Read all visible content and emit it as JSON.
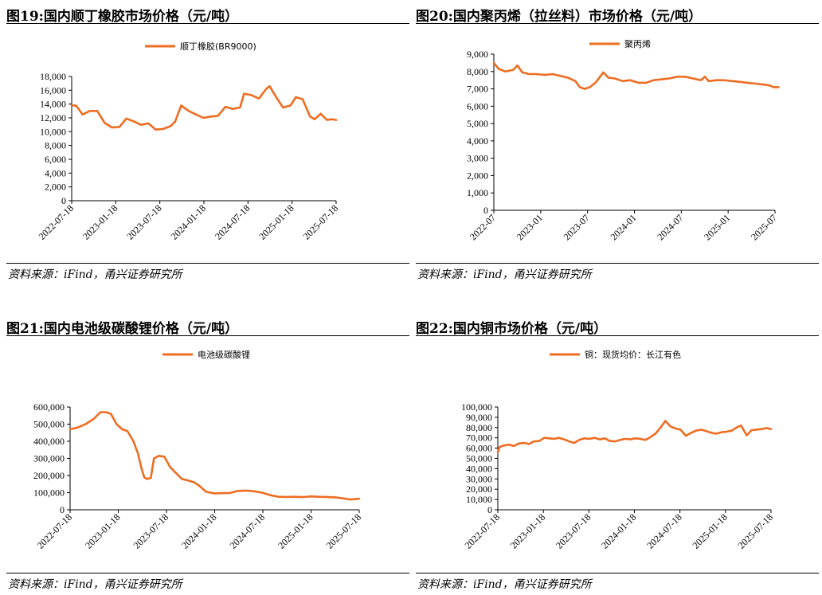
{
  "panels": [
    {
      "title": "图19:国内顺丁橡胶市场价格（元/吨）",
      "source": "资料来源：iFind，甬兴证券研究所"
    },
    {
      "title": "图20:国内聚丙烯（拉丝料）市场价格（元/吨）",
      "source": "资料来源：iFind，甬兴证券研究所"
    },
    {
      "title": "图21:国内电池级碳酸锂价格（元/吨）",
      "source": "资料来源：iFind，甬兴证券研究所"
    },
    {
      "title": "图22:国内铜市场价格（元/吨）",
      "source": "资料来源：iFind，甬兴证券研究所"
    }
  ],
  "colors": {
    "series": "#ED6D22",
    "text": "#000000",
    "rule": "#000000"
  },
  "chart_data": [
    {
      "type": "line",
      "title": "",
      "series": [
        {
          "name": "顺丁橡胶(BR9000)"
        }
      ],
      "legend": "top-center",
      "grid": false,
      "x_tick_labels": [
        "2022-07-18",
        "2023-01-18",
        "2023-07-18",
        "2024-01-18",
        "2024-07-18",
        "2025-01-18",
        "2025-07-18"
      ],
      "x_start": "2022-07-18",
      "x_end": "2025-07-18",
      "ylim": [
        0,
        18000
      ],
      "y_ticks": [
        0,
        2000,
        4000,
        6000,
        8000,
        10000,
        12000,
        14000,
        16000,
        18000
      ],
      "y_tick_labels": [
        "0",
        "2,000",
        "4,000",
        "6,000",
        "8,000",
        "10,000",
        "12,000",
        "14,000",
        "16,000",
        "18,000"
      ],
      "x": [
        "2022-07-18",
        "2022-08-05",
        "2022-09-01",
        "2022-10-01",
        "2022-11-01",
        "2022-12-01",
        "2023-01-01",
        "2023-02-01",
        "2023-03-01",
        "2023-04-01",
        "2023-05-01",
        "2023-06-01",
        "2023-07-01",
        "2023-08-01",
        "2023-09-01",
        "2023-09-20",
        "2023-10-15",
        "2023-11-15",
        "2023-12-15",
        "2024-01-15",
        "2024-02-15",
        "2024-03-15",
        "2024-04-15",
        "2024-05-15",
        "2024-06-15",
        "2024-07-01",
        "2024-08-01",
        "2024-09-01",
        "2024-10-01",
        "2024-10-15",
        "2024-11-15",
        "2024-12-10",
        "2025-01-10",
        "2025-02-01",
        "2025-03-01",
        "2025-04-01",
        "2025-04-20",
        "2025-05-15",
        "2025-06-10",
        "2025-07-01",
        "2025-07-18"
      ],
      "y": [
        13800,
        13800,
        12500,
        13000,
        13000,
        11300,
        10600,
        10700,
        11900,
        11500,
        11000,
        11200,
        10300,
        10400,
        10800,
        11500,
        13800,
        13000,
        12500,
        12000,
        12200,
        12300,
        13600,
        13300,
        13500,
        15500,
        15300,
        14800,
        16200,
        16600,
        14800,
        13500,
        13800,
        15000,
        14700,
        12200,
        11800,
        12600,
        11700,
        11800,
        11700
      ]
    },
    {
      "type": "line",
      "title": "",
      "series": [
        {
          "name": "聚丙烯"
        }
      ],
      "legend": "top-center",
      "grid": false,
      "x_tick_labels": [
        "2022-07",
        "2023-01",
        "2023-07",
        "2024-01",
        "2024-07",
        "2025-01",
        "2025-07"
      ],
      "x_start": "2022-07",
      "x_end": "2025-07",
      "ylim": [
        0,
        9000
      ],
      "y_ticks": [
        0,
        1000,
        2000,
        3000,
        4000,
        5000,
        6000,
        7000,
        8000,
        9000
      ],
      "y_tick_labels": [
        "0",
        "1,000",
        "2,000",
        "3,000",
        "4,000",
        "5,000",
        "6,000",
        "7,000",
        "8,000",
        "9,000"
      ],
      "x": [
        "2022-07-01",
        "2022-07-20",
        "2022-08-15",
        "2022-09-15",
        "2022-10-01",
        "2022-10-20",
        "2022-11-15",
        "2022-12-15",
        "2023-01-15",
        "2023-02-15",
        "2023-03-15",
        "2023-04-15",
        "2023-05-15",
        "2023-06-01",
        "2023-06-20",
        "2023-07-10",
        "2023-08-01",
        "2023-09-01",
        "2023-09-20",
        "2023-10-15",
        "2023-11-15",
        "2023-12-15",
        "2024-01-15",
        "2024-02-15",
        "2024-03-15",
        "2024-04-15",
        "2024-05-15",
        "2024-06-15",
        "2024-07-15",
        "2024-08-15",
        "2024-09-15",
        "2024-10-01",
        "2024-10-15",
        "2024-11-15",
        "2024-12-15",
        "2025-01-15",
        "2025-02-15",
        "2025-03-15",
        "2025-04-15",
        "2025-05-15",
        "2025-06-10",
        "2025-06-25",
        "2025-07-15"
      ],
      "y": [
        8500,
        8150,
        8000,
        8100,
        8350,
        7950,
        7850,
        7850,
        7800,
        7850,
        7750,
        7650,
        7450,
        7100,
        7000,
        7100,
        7350,
        7950,
        7650,
        7600,
        7450,
        7500,
        7350,
        7350,
        7500,
        7550,
        7600,
        7700,
        7700,
        7600,
        7500,
        7700,
        7450,
        7500,
        7500,
        7450,
        7400,
        7350,
        7300,
        7250,
        7200,
        7100,
        7100
      ]
    },
    {
      "type": "line",
      "title": "",
      "series": [
        {
          "name": "电池级碳酸锂"
        }
      ],
      "legend": "top-center",
      "grid": false,
      "x_tick_labels": [
        "2022-07-18",
        "2023-01-18",
        "2023-07-18",
        "2024-01-18",
        "2024-07-18",
        "2025-01-18",
        "2025-07-18"
      ],
      "x_start": "2022-07-18",
      "x_end": "2025-07-18",
      "ylim": [
        0,
        600000
      ],
      "y_ticks": [
        0,
        100000,
        200000,
        300000,
        400000,
        500000,
        600000
      ],
      "y_tick_labels": [
        "0",
        "100,000",
        "200,000",
        "300,000",
        "400,000",
        "500,000",
        "600,000"
      ],
      "x": [
        "2022-07-18",
        "2022-08-15",
        "2022-09-15",
        "2022-10-15",
        "2022-11-10",
        "2022-12-01",
        "2022-12-20",
        "2023-01-10",
        "2023-02-01",
        "2023-02-20",
        "2023-03-15",
        "2023-04-01",
        "2023-04-15",
        "2023-04-25",
        "2023-05-05",
        "2023-05-20",
        "2023-06-01",
        "2023-06-20",
        "2023-07-10",
        "2023-08-01",
        "2023-08-20",
        "2023-09-15",
        "2023-10-10",
        "2023-11-01",
        "2023-11-20",
        "2023-12-15",
        "2024-01-15",
        "2024-02-15",
        "2024-03-15",
        "2024-04-15",
        "2024-05-15",
        "2024-06-15",
        "2024-07-15",
        "2024-08-15",
        "2024-09-15",
        "2024-10-15",
        "2024-11-15",
        "2024-12-15",
        "2025-01-15",
        "2025-02-15",
        "2025-03-15",
        "2025-04-15",
        "2025-05-15",
        "2025-06-15",
        "2025-07-18"
      ],
      "y": [
        470000,
        480000,
        500000,
        530000,
        570000,
        570000,
        560000,
        500000,
        470000,
        460000,
        400000,
        330000,
        240000,
        190000,
        180000,
        185000,
        300000,
        315000,
        310000,
        250000,
        220000,
        180000,
        170000,
        160000,
        140000,
        105000,
        96000,
        97000,
        98000,
        110000,
        112000,
        108000,
        100000,
        85000,
        76000,
        75000,
        76000,
        74000,
        78000,
        76000,
        75000,
        73000,
        67000,
        60000,
        64000
      ]
    },
    {
      "type": "line",
      "title": "",
      "series": [
        {
          "name": "铜：现货均价：长江有色"
        }
      ],
      "legend": "top-center",
      "grid": false,
      "x_tick_labels": [
        "2022-07-18",
        "2023-01-18",
        "2023-07-18",
        "2024-01-18",
        "2024-07-18",
        "2025-01-18",
        "2025-07-18"
      ],
      "x_start": "2022-07-18",
      "x_end": "2025-07-18",
      "ylim": [
        0,
        100000
      ],
      "y_ticks": [
        0,
        10000,
        20000,
        30000,
        40000,
        50000,
        60000,
        70000,
        80000,
        90000,
        100000
      ],
      "y_tick_labels": [
        "0",
        "10,000",
        "20,000",
        "30,000",
        "40,000",
        "50,000",
        "60,000",
        "70,000",
        "80,000",
        "90,000",
        "100,000"
      ],
      "x": [
        "2022-07-18",
        "2022-07-25",
        "2022-08-10",
        "2022-09-01",
        "2022-09-20",
        "2022-10-10",
        "2022-11-01",
        "2022-11-20",
        "2022-12-10",
        "2023-01-01",
        "2023-01-20",
        "2023-02-10",
        "2023-03-01",
        "2023-03-20",
        "2023-04-10",
        "2023-05-01",
        "2023-05-20",
        "2023-06-10",
        "2023-07-01",
        "2023-07-20",
        "2023-08-10",
        "2023-09-01",
        "2023-09-20",
        "2023-10-10",
        "2023-11-01",
        "2023-11-20",
        "2023-12-10",
        "2024-01-01",
        "2024-01-20",
        "2024-02-10",
        "2024-03-01",
        "2024-03-20",
        "2024-04-10",
        "2024-05-01",
        "2024-05-20",
        "2024-06-10",
        "2024-07-01",
        "2024-07-20",
        "2024-08-10",
        "2024-09-01",
        "2024-09-20",
        "2024-10-10",
        "2024-11-01",
        "2024-11-20",
        "2024-12-10",
        "2025-01-01",
        "2025-01-20",
        "2025-02-10",
        "2025-03-01",
        "2025-03-20",
        "2025-04-05",
        "2025-04-12",
        "2025-05-01",
        "2025-05-20",
        "2025-06-10",
        "2025-07-01",
        "2025-07-18"
      ],
      "y": [
        56000,
        61000,
        62500,
        63500,
        62000,
        64500,
        65000,
        64000,
        66500,
        67000,
        70000,
        69500,
        69000,
        70000,
        68500,
        66500,
        65000,
        68000,
        69500,
        69000,
        70000,
        68500,
        69500,
        67000,
        66500,
        68000,
        69000,
        68500,
        69500,
        69000,
        68000,
        70500,
        74000,
        80000,
        86500,
        81000,
        79000,
        78000,
        72000,
        75000,
        77000,
        78000,
        76500,
        75000,
        74000,
        75500,
        76000,
        77000,
        80000,
        82000,
        75000,
        72500,
        77500,
        78000,
        78500,
        79500,
        78500
      ]
    }
  ]
}
